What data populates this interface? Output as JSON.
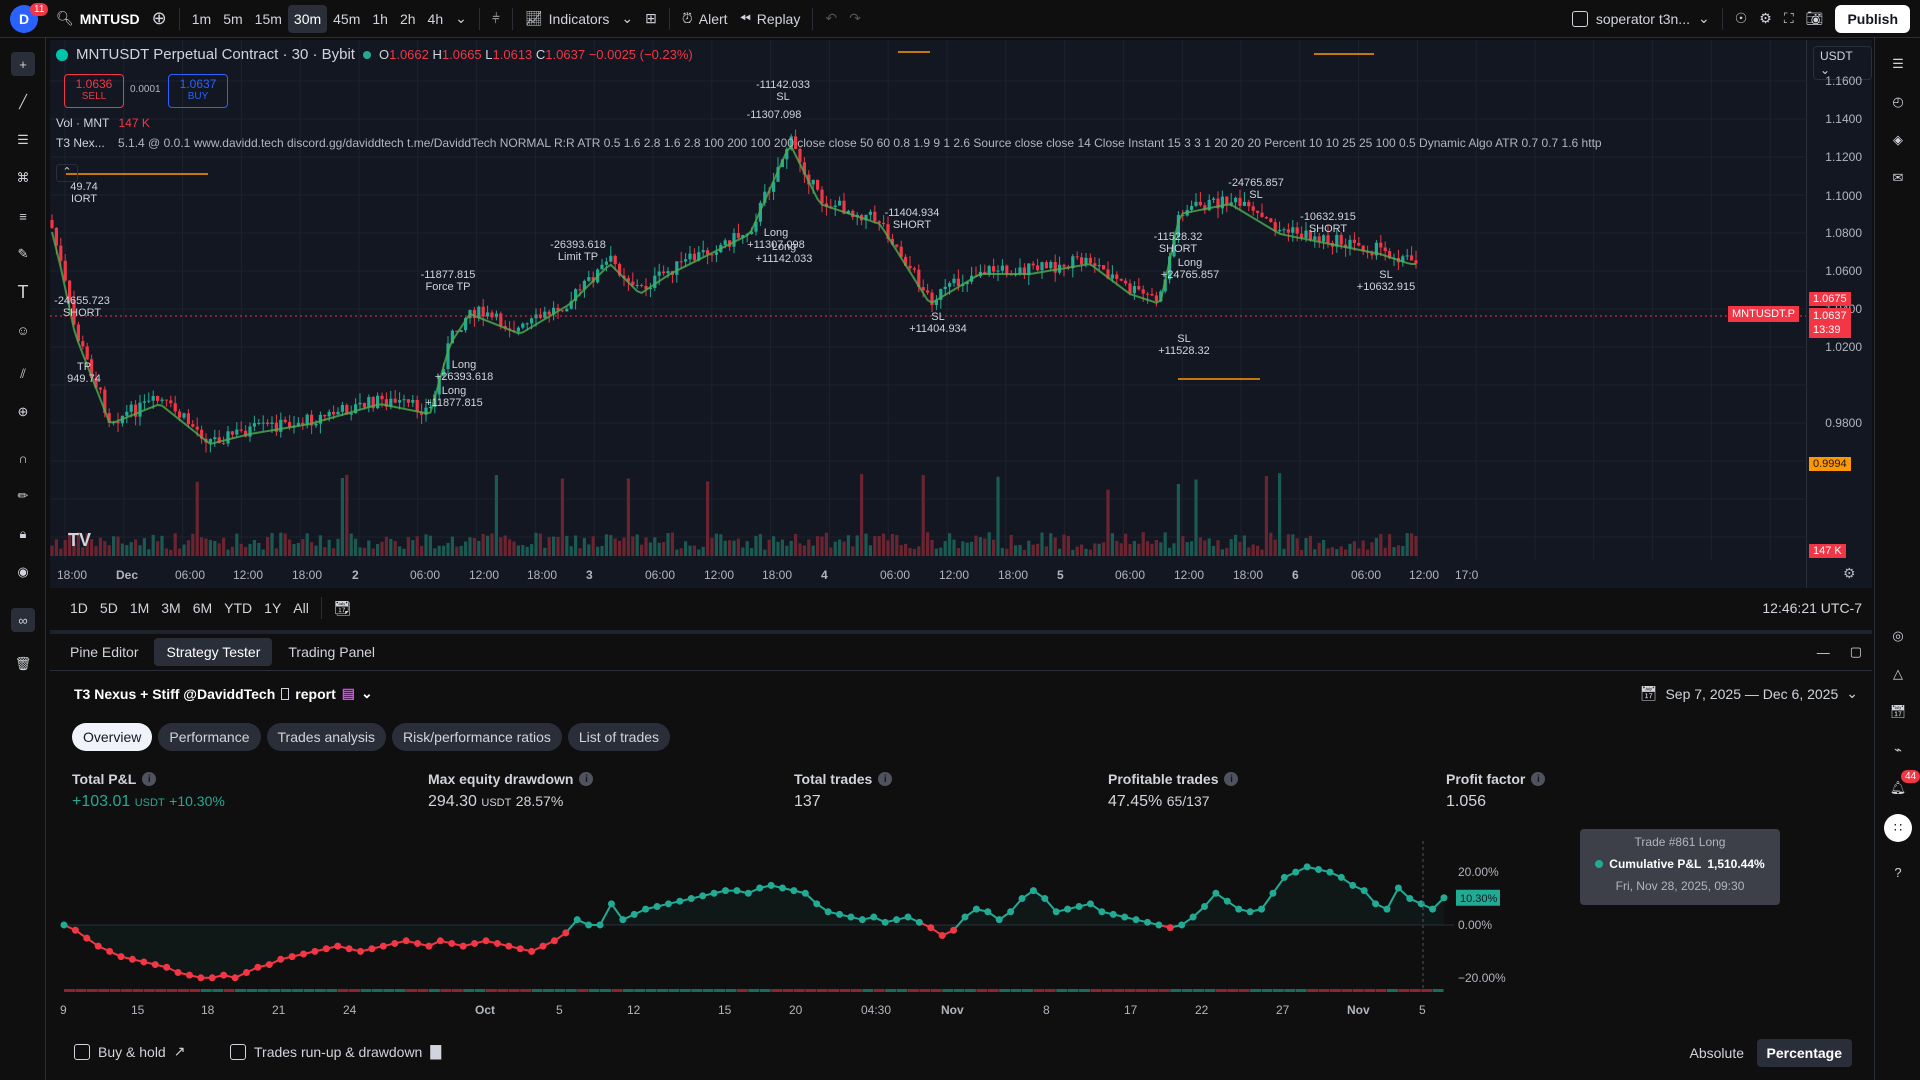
{
  "topbar": {
    "avatar_letter": "D",
    "avatar_badge": "11",
    "symbol": "MNTUSD",
    "timeframes": [
      "1m",
      "5m",
      "15m",
      "30m",
      "45m",
      "1h",
      "2h",
      "4h"
    ],
    "active_timeframe": "30m",
    "indicators_label": "Indicators",
    "alert_label": "Alert",
    "replay_label": "Replay",
    "layout_name": "soperator t3n...",
    "publish_label": "Publish"
  },
  "chart": {
    "title": "MNTUSDT Perpetual Contract · 30 · Bybit",
    "ohlc": {
      "o_label": "O",
      "o": "1.0662",
      "h_label": "H",
      "h": "1.0665",
      "l_label": "L",
      "l": "1.0613",
      "c_label": "C",
      "c": "1.0637",
      "change": "−0.0025 (−0.23%)"
    },
    "sell_price": "1.0636",
    "sell_label": "SELL",
    "spread": "0.0001",
    "buy_price": "1.0637",
    "buy_label": "BUY",
    "vol_label": "Vol · MNT",
    "vol_value": "147 K",
    "indicator_name": "T3 Nex...",
    "indicator_params": "5.1.4 @ 0.0.1 www.davidd.tech discord.gg/daviddtech t.me/DaviddTech NORMAL R:R ATR 0.5 1.6 2.8 1.6 2.8 100 200 100 200 close close 50 60 0.8 1.9 9 1 2.6 Source close close 14 Close Instant 15 3 3 1 20 20 20 Percent 10 10 25 25 100 0.5 Dynamic Algo ATR 0.7 0.7 1.6 http",
    "currency": "USDT",
    "price_ticks": [
      "1.1600",
      "1.1400",
      "1.1200",
      "1.1000",
      "1.0800",
      "1.0600",
      "1.0400",
      "1.0200",
      "0.9800"
    ],
    "price_badges": {
      "current": "1.0637",
      "countdown": "13:39",
      "upper": "1.0675",
      "lower": "0.9994",
      "vol": "147 K",
      "symbol_tag": "MNTUSDT.P"
    },
    "time_ticks": [
      "18:00",
      "Dec",
      "06:00",
      "12:00",
      "18:00",
      "2",
      "06:00",
      "12:00",
      "18:00",
      "3",
      "06:00",
      "12:00",
      "18:00",
      "4",
      "06:00",
      "12:00",
      "18:00",
      "5",
      "06:00",
      "12:00",
      "18:00",
      "6",
      "06:00",
      "12:00",
      "17:0"
    ],
    "annotations": [
      {
        "text": "49.74\nIORT"
      },
      {
        "text": "-24655.723\nSHORT"
      },
      {
        "text": "TP\n949.74"
      },
      {
        "text": "-11877.815\nForce TP"
      },
      {
        "text": "Long\n+26393.618"
      },
      {
        "text": "Long\n+11877.815"
      },
      {
        "text": "-26393.618\nLimit TP"
      },
      {
        "text": "-11142.033\nSL"
      },
      {
        "text": "-11307.098"
      },
      {
        "text": "Long\n+11307.098"
      },
      {
        "text": "Long\n+11142.033"
      },
      {
        "text": "-11404.934\nSHORT"
      },
      {
        "text": "SL\n+11404.934"
      },
      {
        "text": "-11528.32\nSHORT"
      },
      {
        "text": "Long\n+24765.857"
      },
      {
        "text": "SL\n+11528.32"
      },
      {
        "text": "-24765.857\nSL"
      },
      {
        "text": "-10632.915\nSHORT"
      },
      {
        "text": "SL\n+10632.915"
      }
    ]
  },
  "rangebar": {
    "ranges": [
      "1D",
      "5D",
      "1M",
      "3M",
      "6M",
      "YTD",
      "1Y",
      "All"
    ],
    "clock": "12:46:21 UTC-7"
  },
  "panel_tabs": [
    "Pine Editor",
    "Strategy Tester",
    "Trading Panel"
  ],
  "active_panel_tab": "Strategy Tester",
  "strategy": {
    "name": "T3 Nexus + Stiff @DaviddTech",
    "report_label": "report",
    "date_range": "Sep 7, 2025 — Dec 6, 2025",
    "subtabs": [
      "Overview",
      "Performance",
      "Trades analysis",
      "Risk/performance ratios",
      "List of trades"
    ],
    "active_subtab": "Overview",
    "metrics": [
      {
        "title": "Total P&L",
        "value": "+103.01",
        "unit": "USDT",
        "extra": "+10.30%"
      },
      {
        "title": "Max equity drawdown",
        "value": "294.30",
        "unit": "USDT",
        "extra": "28.57%"
      },
      {
        "title": "Total trades",
        "value": "137",
        "unit": "",
        "extra": ""
      },
      {
        "title": "Profitable trades",
        "value": "47.45%",
        "unit": "",
        "extra": "65/137"
      },
      {
        "title": "Profit factor",
        "value": "1.056",
        "unit": "",
        "extra": ""
      }
    ],
    "tooltip": {
      "title": "Trade #861 Long",
      "label": "Cumulative P&L",
      "value": "1,510.44%",
      "date": "Fri, Nov 28, 2025, 09:30"
    },
    "equity_y_ticks": [
      "20.00%",
      "0.00%",
      "−20.00%"
    ],
    "equity_current": "10.30%",
    "equity_x_ticks": [
      "9",
      "15",
      "18",
      "21",
      "24",
      "Oct",
      "5",
      "12",
      "15",
      "20",
      "04:30",
      "Nov",
      "8",
      "17",
      "22",
      "27",
      "Nov",
      "5"
    ],
    "buy_hold_label": "Buy & hold",
    "runup_label": "Trades run-up & drawdown",
    "absolute_label": "Absolute",
    "percentage_label": "Percentage"
  },
  "chart_data": {
    "type": "line",
    "ylabel": "",
    "ylim": [
      -25,
      28
    ],
    "series": [
      {
        "values": [
          0,
          -2,
          -5,
          -8,
          -10,
          -12,
          -13,
          -14,
          -15,
          -16,
          -18,
          -19,
          -20,
          -20,
          -19,
          -20,
          -18,
          -16,
          -15,
          -13,
          -12,
          -11,
          -10,
          -9,
          -8,
          -9,
          -10,
          -9,
          -8,
          -7,
          -6,
          -7,
          -8,
          -6,
          -7,
          -8,
          -7,
          -6,
          -7,
          -8,
          -9,
          -10,
          -8,
          -6,
          -3,
          2,
          0,
          0,
          8,
          2,
          4,
          6,
          7,
          8,
          9,
          10,
          11,
          12,
          13,
          13,
          12,
          14,
          15,
          14,
          13,
          12,
          8,
          5,
          4,
          3,
          2,
          3,
          1,
          2,
          3,
          1,
          -1,
          -4,
          -2,
          3,
          6,
          5,
          2,
          5,
          10,
          13,
          10,
          5,
          6,
          7,
          8,
          5,
          4,
          3,
          2,
          1,
          0,
          -1,
          0,
          3,
          7,
          12,
          9,
          6,
          5,
          6,
          12,
          18,
          20,
          22,
          21,
          20,
          18,
          15,
          13,
          8,
          6,
          14,
          10,
          8,
          6,
          10.3
        ]
      }
    ]
  }
}
